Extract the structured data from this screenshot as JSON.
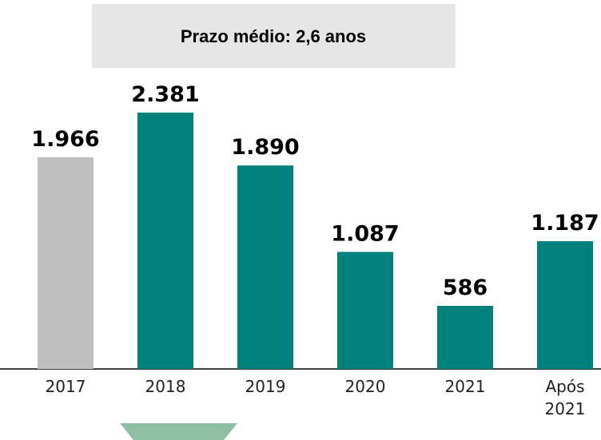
{
  "chart_data": {
    "type": "bar",
    "title": "Prazo médio: 2,6 anos",
    "categories": [
      "2017",
      "2018",
      "2019",
      "2020",
      "2021",
      "Após 2021"
    ],
    "values": [
      1966,
      2381,
      1890,
      1087,
      586,
      1187
    ],
    "value_labels": [
      "1.966",
      "2.381",
      "1.890",
      "1.087",
      "586",
      "1.187"
    ],
    "colors": [
      "#bfbfbf",
      "#00807a",
      "#00807a",
      "#00807a",
      "#00807a",
      "#00807a"
    ],
    "ylim": [
      0,
      2500
    ]
  }
}
